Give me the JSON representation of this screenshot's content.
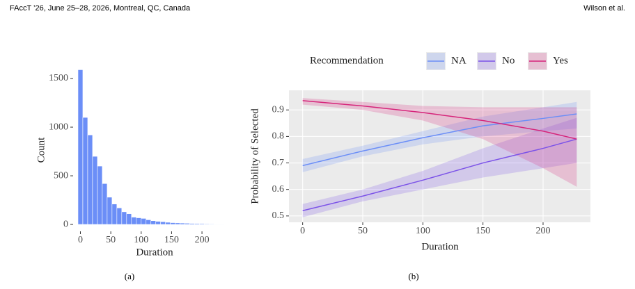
{
  "header": {
    "left": "FAccT ’26, June 25–28, 2026, Montreal, QC, Canada",
    "right": "Wilson et al."
  },
  "captions": [
    "(a)",
    "(b)"
  ],
  "chart_data": [
    {
      "type": "histogram",
      "x_label": "Duration",
      "y_label": "Count",
      "color": "#6b8ef7",
      "bins": [
        -4,
        4,
        12,
        20,
        28,
        36,
        44,
        52,
        60,
        68,
        76,
        84,
        92,
        100,
        108,
        116,
        124,
        132,
        140,
        148,
        156,
        164,
        172,
        180,
        188,
        196,
        204,
        212,
        220,
        228,
        236
      ],
      "counts": [
        1590,
        1100,
        920,
        700,
        600,
        420,
        280,
        210,
        170,
        130,
        110,
        75,
        68,
        62,
        48,
        38,
        32,
        28,
        22,
        18,
        16,
        14,
        12,
        10,
        9,
        8,
        6,
        5,
        4,
        3
      ],
      "xlim": [
        -12,
        240
      ],
      "xticks": [
        0,
        50,
        100,
        150,
        200
      ],
      "ylim": [
        -71,
        1593
      ],
      "yticks": [
        0,
        500,
        1000,
        1500
      ]
    },
    {
      "type": "line",
      "x_label": "Duration",
      "y_label": "Probability of Selected",
      "legend_title": "Recommendation",
      "legend": "top",
      "grid": true,
      "x": [
        0,
        50,
        100,
        150,
        200,
        228
      ],
      "series": [
        {
          "name": "NA",
          "color": "#6b8ef7",
          "values": [
            0.69,
            0.745,
            0.795,
            0.84,
            0.868,
            0.885
          ],
          "lower": [
            0.665,
            0.725,
            0.77,
            0.8,
            0.82,
            0.83
          ],
          "upper": [
            0.715,
            0.765,
            0.82,
            0.875,
            0.91,
            0.93
          ]
        },
        {
          "name": "No",
          "color": "#7b52e8",
          "values": [
            0.52,
            0.575,
            0.635,
            0.7,
            0.755,
            0.79
          ],
          "lower": [
            0.495,
            0.555,
            0.6,
            0.645,
            0.68,
            0.7
          ],
          "upper": [
            0.545,
            0.6,
            0.67,
            0.755,
            0.83,
            0.87
          ]
        },
        {
          "name": "Yes",
          "color": "#d6247a",
          "values": [
            0.935,
            0.915,
            0.89,
            0.86,
            0.82,
            0.79
          ],
          "lower": [
            0.92,
            0.9,
            0.86,
            0.79,
            0.68,
            0.61
          ],
          "upper": [
            0.945,
            0.93,
            0.915,
            0.91,
            0.91,
            0.91
          ]
        }
      ],
      "xlim": [
        -11.4,
        239.4
      ],
      "xticks": [
        0,
        50,
        100,
        150,
        200
      ],
      "ylim": [
        0.476,
        0.974
      ],
      "yticks": [
        0.5,
        0.6,
        0.7,
        0.8,
        0.9
      ]
    }
  ]
}
